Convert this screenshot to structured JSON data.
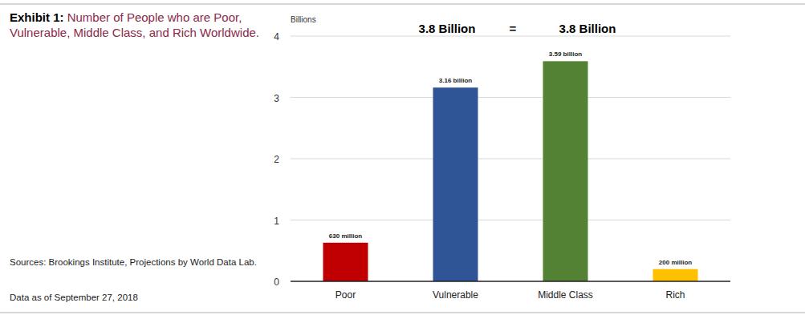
{
  "chart_data": {
    "type": "bar",
    "title": "Exhibit 1: Number of People who are Poor, Vulnerable, Middle Class, and Rich Worldwide.",
    "y_label": "Billions",
    "annotations": [
      "3.8 Billion",
      "=",
      "3.8 Billion"
    ],
    "source": "Sources: Brookings Institute, Projections by World Data Lab.",
    "note": "Data as of September 27, 2018",
    "categories": [
      "Poor",
      "Vulnerable",
      "Middle Class",
      "Rich"
    ],
    "values": [
      0.63,
      3.16,
      3.59,
      0.2
    ],
    "value_labels": [
      "630 million",
      "3.16 billion",
      "3.59 billion",
      "200 million"
    ],
    "colors": [
      "#c00000",
      "#2f5597",
      "#548235",
      "#ffc000"
    ],
    "ylim": [
      0,
      4
    ],
    "yticks": [
      0,
      1,
      2,
      3,
      4
    ],
    "grid": true,
    "data_labels": true
  }
}
